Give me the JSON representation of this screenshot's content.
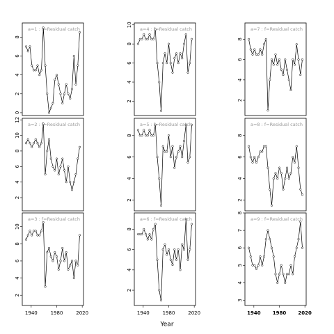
{
  "chart_data": [
    {
      "type": "line",
      "title": "a=1 : f=Residual catch",
      "x": [
        1932,
        1935,
        1938,
        1941,
        1944,
        1947,
        1950,
        1953,
        1956,
        1959,
        1962,
        1965,
        1968,
        1971,
        1974,
        1977,
        1980,
        1983,
        1986,
        1989,
        1992,
        1995,
        1998,
        2001,
        2004,
        2007,
        2010,
        2013,
        2016
      ],
      "values": [
        7,
        6.5,
        7,
        5,
        4.5,
        4.5,
        5,
        4,
        4.5,
        9,
        5,
        2,
        0,
        0.5,
        1,
        3.5,
        4,
        3,
        2,
        1,
        2,
        3,
        2,
        1.5,
        2.5,
        6,
        3,
        5,
        8.5
      ],
      "xlim": [
        1926,
        2022
      ],
      "ylim": [
        -0.3,
        9.5
      ],
      "yticks": [
        0,
        2,
        4,
        6,
        8
      ]
    },
    {
      "type": "line",
      "title": "a=2 : f=Residual catch",
      "x": [
        1932,
        1935,
        1938,
        1941,
        1944,
        1947,
        1950,
        1953,
        1956,
        1959,
        1962,
        1965,
        1968,
        1971,
        1974,
        1977,
        1980,
        1983,
        1986,
        1989,
        1992,
        1995,
        1998,
        2001,
        2004,
        2007,
        2010,
        2013,
        2016
      ],
      "values": [
        9,
        9.5,
        9,
        8.5,
        9,
        9.5,
        9,
        8.5,
        9,
        11.5,
        5,
        8,
        9.5,
        7,
        6,
        5.5,
        7,
        5,
        6,
        7,
        5.5,
        4,
        6,
        4,
        3,
        4,
        5,
        7,
        8.5
      ],
      "xlim": [
        1926,
        2022
      ],
      "ylim": [
        0.3,
        12.2
      ],
      "yticks": [
        2,
        4,
        6,
        8,
        10,
        12
      ]
    },
    {
      "type": "line",
      "title": "a=3 : f=Residual catch",
      "x": [
        1932,
        1935,
        1938,
        1941,
        1944,
        1947,
        1950,
        1953,
        1956,
        1959,
        1962,
        1965,
        1968,
        1971,
        1974,
        1977,
        1980,
        1983,
        1986,
        1989,
        1992,
        1995,
        1998,
        2001,
        2004,
        2007,
        2010,
        2013,
        2016
      ],
      "values": [
        8.5,
        9,
        9.5,
        9,
        9.5,
        9.5,
        9,
        9,
        9.5,
        10.5,
        3,
        7,
        7.5,
        6.5,
        6,
        7,
        6.5,
        5,
        6,
        7.5,
        6,
        7,
        5,
        5.5,
        6,
        4,
        6,
        5.5,
        9
      ],
      "xlim": [
        1926,
        2022
      ],
      "ylim": [
        0.8,
        11.6
      ],
      "yticks": [
        2,
        4,
        6,
        8,
        10
      ],
      "xticks": [
        1940,
        1980,
        2020
      ]
    },
    {
      "type": "line",
      "title": "a=4 : f=Residual catch",
      "x": [
        1932,
        1935,
        1938,
        1941,
        1944,
        1947,
        1950,
        1953,
        1956,
        1959,
        1962,
        1965,
        1968,
        1971,
        1974,
        1977,
        1980,
        1983,
        1986,
        1989,
        1992,
        1995,
        1998,
        2001,
        2004,
        2007,
        2010,
        2013,
        2016
      ],
      "values": [
        8,
        8.5,
        8.5,
        9,
        8.5,
        8.5,
        9,
        8.5,
        8.5,
        9.5,
        6,
        4,
        1,
        6,
        7,
        6,
        8,
        6,
        5,
        6.5,
        7,
        6,
        7,
        6.5,
        8,
        9,
        5,
        6,
        8.5
      ],
      "xlim": [
        1926,
        2022
      ],
      "ylim": [
        0.5,
        10.2
      ],
      "yticks": [
        2,
        4,
        6,
        8,
        10
      ]
    },
    {
      "type": "line",
      "title": "a=5 : f=Residual catch",
      "x": [
        1932,
        1935,
        1938,
        1941,
        1944,
        1947,
        1950,
        1953,
        1956,
        1959,
        1962,
        1965,
        1968,
        1971,
        1974,
        1977,
        1980,
        1983,
        1986,
        1989,
        1992,
        1995,
        1998,
        2001,
        2004,
        2007,
        2010,
        2013,
        2016
      ],
      "values": [
        8.5,
        8,
        8,
        8.5,
        8,
        8,
        8.5,
        8,
        8,
        9,
        6,
        4,
        1.5,
        7,
        6.5,
        6.5,
        8,
        6,
        7,
        5,
        6,
        6.5,
        7,
        6,
        7.5,
        9,
        5.5,
        6,
        9
      ],
      "xlim": [
        1926,
        2022
      ],
      "ylim": [
        1,
        9.6
      ],
      "yticks": [
        2,
        4,
        6,
        8
      ]
    },
    {
      "type": "line",
      "title": "a=6 : f=Residual catch",
      "x": [
        1932,
        1935,
        1938,
        1941,
        1944,
        1947,
        1950,
        1953,
        1956,
        1959,
        1962,
        1965,
        1968,
        1971,
        1974,
        1977,
        1980,
        1983,
        1986,
        1989,
        1992,
        1995,
        1998,
        2001,
        2004,
        2007,
        2010,
        2013,
        2016
      ],
      "values": [
        7.5,
        7.5,
        7.5,
        8,
        7.5,
        7,
        7.5,
        7,
        8,
        8.5,
        5,
        2,
        1,
        6,
        6.5,
        5.5,
        6,
        5,
        4.5,
        6,
        5,
        6,
        4,
        6.5,
        6,
        9,
        5,
        6,
        8.5
      ],
      "xlim": [
        1926,
        2022
      ],
      "ylim": [
        0.5,
        9.6
      ],
      "yticks": [
        2,
        4,
        6,
        8
      ],
      "xticks": [
        1940,
        1980,
        2020
      ]
    },
    {
      "type": "line",
      "title": "a=7 : f=Residual catch",
      "x": [
        1932,
        1935,
        1938,
        1941,
        1944,
        1947,
        1950,
        1953,
        1956,
        1959,
        1962,
        1965,
        1968,
        1971,
        1974,
        1977,
        1980,
        1983,
        1986,
        1989,
        1992,
        1995,
        1998,
        2001,
        2004,
        2007,
        2010,
        2013,
        2016
      ],
      "values": [
        8,
        7,
        6.5,
        7,
        6.5,
        6.5,
        7,
        6.5,
        7.5,
        8,
        1,
        4,
        6,
        5.5,
        6.5,
        5.5,
        6,
        5,
        4.5,
        6,
        5,
        4,
        3,
        6,
        5.5,
        7.5,
        6,
        4.5,
        6
      ],
      "xlim": [
        1926,
        2022
      ],
      "ylim": [
        0.5,
        9.6
      ],
      "yticks": [
        2,
        4,
        6,
        8
      ]
    },
    {
      "type": "line",
      "title": "a=8 : f=Residual catch",
      "x": [
        1932,
        1935,
        1938,
        1941,
        1944,
        1947,
        1950,
        1953,
        1956,
        1959,
        1962,
        1965,
        1968,
        1971,
        1974,
        1977,
        1980,
        1983,
        1986,
        1989,
        1992,
        1995,
        1998,
        2001,
        2004,
        2007,
        2010,
        2013,
        2016
      ],
      "values": [
        7,
        6,
        5.5,
        6,
        5.5,
        6,
        6.5,
        6.5,
        7,
        7,
        5,
        3,
        1.5,
        4,
        4.5,
        4,
        5,
        4.5,
        3,
        4,
        5,
        4,
        4.5,
        6,
        5.5,
        7,
        5,
        3,
        2.5
      ],
      "xlim": [
        1926,
        2022
      ],
      "ylim": [
        1,
        9.6
      ],
      "yticks": [
        2,
        4,
        6,
        8
      ]
    },
    {
      "type": "line",
      "title": "a=9 : f=Residual catch",
      "x": [
        1932,
        1935,
        1938,
        1941,
        1944,
        1947,
        1950,
        1953,
        1956,
        1959,
        1962,
        1965,
        1968,
        1971,
        1974,
        1977,
        1980,
        1983,
        1986,
        1989,
        1992,
        1995,
        1998,
        2001,
        2004,
        2007,
        2010,
        2013,
        2016
      ],
      "values": [
        6,
        5.5,
        5,
        5,
        4.8,
        5,
        5.5,
        5,
        5.5,
        6.5,
        7,
        6.5,
        6,
        5.5,
        4.5,
        4,
        4.5,
        5,
        4.5,
        4,
        4.5,
        4.5,
        5,
        4.5,
        5.5,
        6,
        6.5,
        7.5,
        6
      ],
      "xlim": [
        1926,
        2022
      ],
      "ylim": [
        2.7,
        8
      ],
      "yticks": [
        3,
        4,
        5,
        6,
        7,
        8
      ],
      "xticks": [
        1940,
        1980,
        2020
      ]
    }
  ],
  "x_label": "Year"
}
